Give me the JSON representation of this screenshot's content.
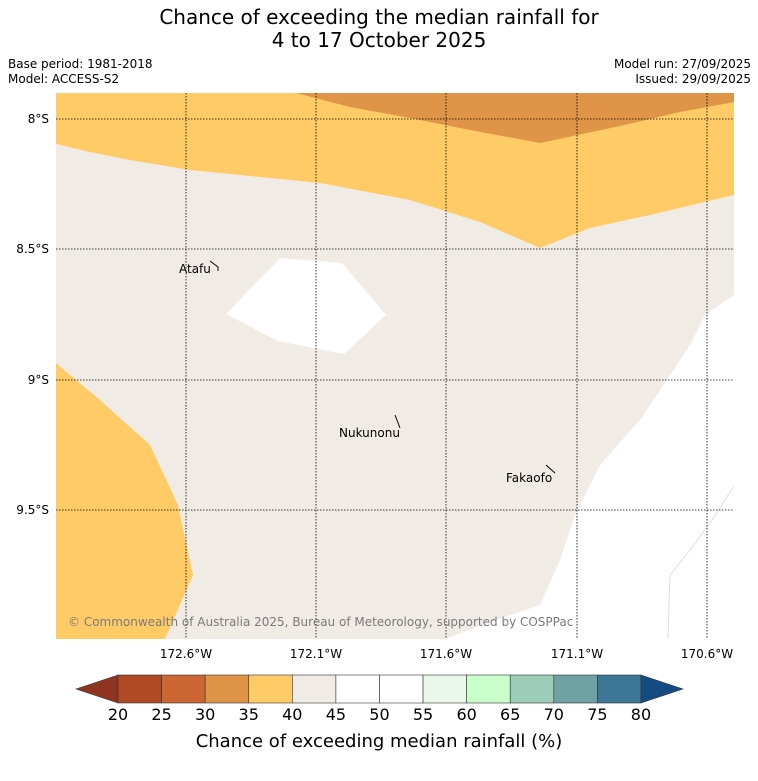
{
  "title": {
    "line1": "Chance of exceeding the median rainfall for",
    "line2": "4 to 17 October 2025"
  },
  "meta": {
    "base_period": "Base period: 1981-2018",
    "model": "Model: ACCESS-S2",
    "model_run": "Model run: 27/09/2025",
    "issued": "Issued: 29/09/2025"
  },
  "map": {
    "lat_labels": [
      "8°S",
      "8.5°S",
      "9°S",
      "9.5°S"
    ],
    "lon_labels": [
      "172.6°W",
      "172.1°W",
      "171.6°W",
      "171.1°W",
      "170.6°W"
    ],
    "places": [
      "Atafu",
      "Nukunonu",
      "Fakaofo"
    ],
    "copyright": "© Commonwealth of Australia 2025, Bureau of Meteorology, supported by COSPPac"
  },
  "colors": {
    "c20_25": "#b04a25",
    "c25_30": "#cc6632",
    "c30_35": "#e09448",
    "c35_40": "#fecb67",
    "c40_45": "#f0ece5",
    "c45_55": "#ffffff",
    "c55_60": "#eaf7ea",
    "c60_65": "#c9fdc9",
    "c65_70": "#9ccdb8",
    "c70_75": "#6ea2a5",
    "c75_80": "#3d7697",
    "below": "#8e3421",
    "above": "#144c82"
  },
  "colorbar": {
    "ticks": [
      "20",
      "25",
      "30",
      "35",
      "40",
      "45",
      "50",
      "55",
      "60",
      "65",
      "70",
      "75",
      "80"
    ],
    "label": "Chance of exceeding median rainfall (%)"
  }
}
